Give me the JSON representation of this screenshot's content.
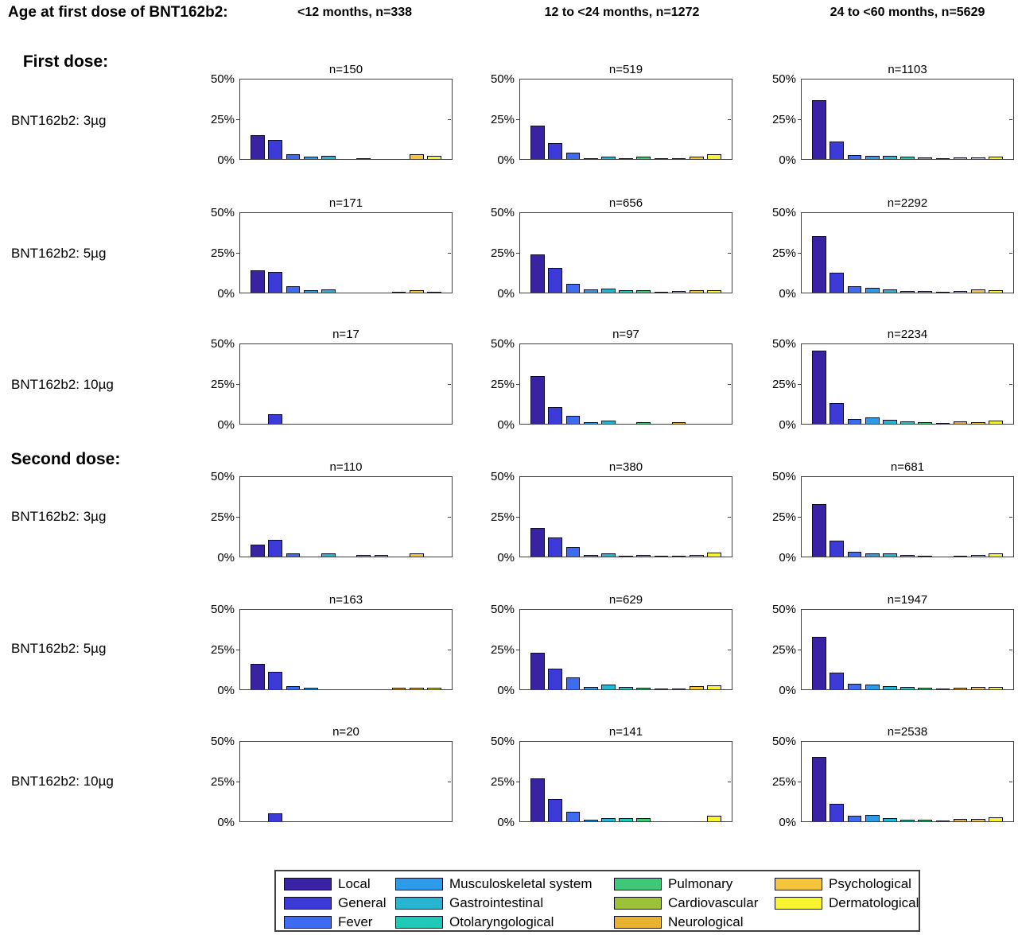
{
  "header": {
    "row_axis_label": "Age at first dose of BNT162b2:",
    "columns": [
      "<12 months, n=338",
      "12 to <24 months, n=1272",
      "24 to <60 months, n=5629"
    ]
  },
  "left_panel": {
    "group_labels": [
      {
        "text": "First dose:"
      },
      {
        "text": "Second dose:"
      }
    ],
    "row_labels": [
      {
        "text": "BNT162b2: 3µg"
      },
      {
        "text": "BNT162b2: 5µg"
      },
      {
        "text": "BNT162b2: 10µg"
      },
      {
        "text": "BNT162b2: 3µg"
      },
      {
        "text": "BNT162b2: 5µg"
      },
      {
        "text": "BNT162b2: 10µg"
      }
    ]
  },
  "chart_data": {
    "type": "bar",
    "ylabel": "",
    "xlabel": "",
    "ylim": [
      0,
      50
    ],
    "yticks": [
      "50%",
      "25%",
      "0%"
    ],
    "grid": false,
    "legend_position": "bottom-outside",
    "categories": [
      "Local",
      "General",
      "Fever",
      "Musculoskeletal system",
      "Gastrointestinal",
      "Otolaryngological",
      "Pulmonary",
      "Cardiovascular",
      "Neurological",
      "Psychological",
      "Dermatological"
    ],
    "category_colors": [
      "#3A22A4",
      "#3D3BD8",
      "#3E6CF0",
      "#2E9BE8",
      "#27B5D2",
      "#1FC9B6",
      "#3FC878",
      "#9EC13A",
      "#E6B230",
      "#F3C63C",
      "#F8F42F"
    ],
    "subplots": [
      {
        "id": "first-3ug-lt12m",
        "dose_group": "First dose",
        "dose": "BNT162b2: 3µg",
        "age_group": "<12 months, n=338",
        "n_label": "n=150",
        "values": [
          15,
          12,
          3,
          1.5,
          2,
          0,
          0.7,
          0,
          0,
          3,
          2
        ]
      },
      {
        "id": "first-3ug-12to24m",
        "dose_group": "First dose",
        "dose": "BNT162b2: 3µg",
        "age_group": "12 to <24 months, n=1272",
        "n_label": "n=519",
        "values": [
          21,
          10,
          4,
          0.6,
          1.5,
          0.4,
          1.5,
          0.3,
          0.3,
          1.5,
          3
        ]
      },
      {
        "id": "first-3ug-24to60m",
        "dose_group": "First dose",
        "dose": "BNT162b2: 3µg",
        "age_group": "24 to <60 months, n=5629",
        "n_label": "n=1103",
        "values": [
          37,
          11,
          2.5,
          2,
          2,
          1.5,
          1,
          0.3,
          1,
          1,
          1.5
        ]
      },
      {
        "id": "first-5ug-lt12m",
        "dose_group": "First dose",
        "dose": "BNT162b2: 5µg",
        "age_group": "<12 months, n=338",
        "n_label": "n=171",
        "values": [
          14,
          13,
          4,
          1.5,
          2,
          0,
          0,
          0,
          0.6,
          1.5,
          0.6
        ]
      },
      {
        "id": "first-5ug-12to24m",
        "dose_group": "First dose",
        "dose": "BNT162b2: 5µg",
        "age_group": "12 to <24 months, n=1272",
        "n_label": "n=656",
        "values": [
          24,
          15.5,
          5.5,
          2,
          2.3,
          1.7,
          1.5,
          0.4,
          0.8,
          1.7,
          1.5
        ]
      },
      {
        "id": "first-5ug-24to60m",
        "dose_group": "First dose",
        "dose": "BNT162b2: 5µg",
        "age_group": "24 to <60 months, n=5629",
        "n_label": "n=2292",
        "values": [
          35.5,
          12.5,
          4,
          3,
          2,
          1.2,
          1,
          0.3,
          1,
          1.8,
          1.7
        ]
      },
      {
        "id": "first-10ug-lt12m",
        "dose_group": "First dose",
        "dose": "BNT162b2: 10µg",
        "age_group": "<12 months, n=338",
        "n_label": "n=17",
        "values": [
          0,
          6,
          0,
          0,
          0,
          0,
          0,
          0,
          0,
          0,
          0
        ]
      },
      {
        "id": "first-10ug-12to24m",
        "dose_group": "First dose",
        "dose": "BNT162b2: 10µg",
        "age_group": "12 to <24 months, n=1272",
        "n_label": "n=97",
        "values": [
          30,
          10.5,
          5,
          1,
          2,
          0,
          1,
          0,
          1,
          0,
          0
        ]
      },
      {
        "id": "first-10ug-24to60m",
        "dose_group": "First dose",
        "dose": "BNT162b2: 10µg",
        "age_group": "24 to <60 months, n=5629",
        "n_label": "n=2234",
        "values": [
          46,
          13,
          3,
          4,
          2.3,
          1.3,
          1,
          0.5,
          1.5,
          1.2,
          2
        ]
      },
      {
        "id": "second-3ug-lt12m",
        "dose_group": "Second dose",
        "dose": "BNT162b2: 3µg",
        "age_group": "<12 months, n=338",
        "n_label": "n=110",
        "values": [
          7.5,
          10.5,
          2,
          0,
          2,
          0,
          1,
          1,
          0,
          2,
          0
        ]
      },
      {
        "id": "second-3ug-12to24m",
        "dose_group": "Second dose",
        "dose": "BNT162b2: 3µg",
        "age_group": "12 to <24 months, n=1272",
        "n_label": "n=380",
        "values": [
          18,
          12,
          6,
          1.2,
          1.8,
          0.4,
          0.8,
          0.2,
          0.4,
          0.8,
          2.5
        ]
      },
      {
        "id": "second-3ug-24to60m",
        "dose_group": "Second dose",
        "dose": "BNT162b2: 3µg",
        "age_group": "24 to <60 months, n=5629",
        "n_label": "n=681",
        "values": [
          33,
          10,
          3,
          2,
          1.8,
          0.9,
          0.3,
          0,
          0.7,
          1,
          1.8
        ]
      },
      {
        "id": "second-5ug-lt12m",
        "dose_group": "Second dose",
        "dose": "BNT162b2: 5µg",
        "age_group": "<12 months, n=338",
        "n_label": "n=163",
        "values": [
          16,
          11,
          2,
          1.2,
          0,
          0,
          0,
          0,
          0.8,
          1.2,
          0.8
        ]
      },
      {
        "id": "second-5ug-12to24m",
        "dose_group": "Second dose",
        "dose": "BNT162b2: 5µg",
        "age_group": "12 to <24 months, n=1272",
        "n_label": "n=629",
        "values": [
          23,
          13,
          7.5,
          1.5,
          2.8,
          1.5,
          1.2,
          0.5,
          0.2,
          1.8,
          2.3
        ]
      },
      {
        "id": "second-5ug-24to60m",
        "dose_group": "Second dose",
        "dose": "BNT162b2: 5µg",
        "age_group": "24 to <60 months, n=5629",
        "n_label": "n=1947",
        "values": [
          33,
          10.5,
          3.5,
          3,
          2,
          1.5,
          0.8,
          0.2,
          1,
          1.7,
          1.5
        ]
      },
      {
        "id": "second-10ug-lt12m",
        "dose_group": "Second dose",
        "dose": "BNT162b2: 10µg",
        "age_group": "<12 months, n=338",
        "n_label": "n=20",
        "values": [
          0,
          5,
          0,
          0,
          0,
          0,
          0,
          0,
          0,
          0,
          0
        ]
      },
      {
        "id": "second-10ug-12to24m",
        "dose_group": "Second dose",
        "dose": "BNT162b2: 10µg",
        "age_group": "12 to <24 months, n=1272",
        "n_label": "n=141",
        "values": [
          27,
          14,
          6,
          1,
          2.2,
          1.8,
          1.8,
          0,
          0,
          0,
          3.5
        ]
      },
      {
        "id": "second-10ug-24to60m",
        "dose_group": "Second dose",
        "dose": "BNT162b2: 10µg",
        "age_group": "24 to <60 months, n=5629",
        "n_label": "n=2538",
        "values": [
          40.5,
          11,
          3.5,
          4,
          2.2,
          1.2,
          1,
          0.5,
          1.5,
          1.3,
          2.5
        ]
      }
    ]
  },
  "legend": {
    "columns": [
      [
        0,
        1,
        2
      ],
      [
        3,
        4,
        5
      ],
      [
        6,
        7,
        8
      ],
      [
        9,
        10
      ]
    ]
  }
}
